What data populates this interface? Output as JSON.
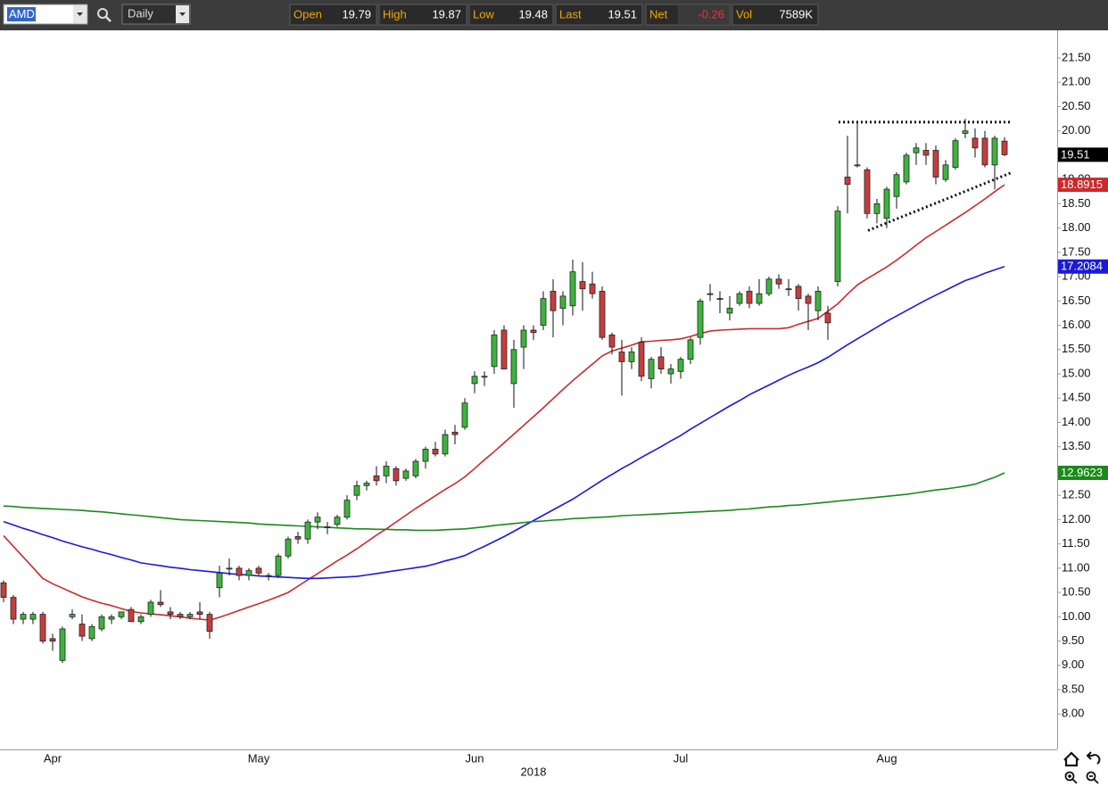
{
  "toolbar": {
    "symbol": "AMD",
    "interval": "Daily",
    "labels": [
      "Open",
      "High",
      "Low",
      "Last",
      "Net",
      "Vol"
    ],
    "net": -0.26,
    "vol": "7589K"
  },
  "chart_data": {
    "type": "candlestick",
    "xlabel": "2018",
    "categories": [
      null,
      null,
      null,
      null,
      null,
      "Apr",
      null,
      null,
      null,
      null,
      null,
      null,
      null,
      null,
      null,
      null,
      null,
      null,
      null,
      null,
      null,
      null,
      null,
      null,
      null,
      null,
      "May",
      null,
      null,
      null,
      null,
      null,
      null,
      null,
      null,
      null,
      null,
      null,
      null,
      null,
      null,
      null,
      null,
      null,
      null,
      null,
      null,
      null,
      "Jun",
      null,
      null,
      null,
      null,
      null,
      null,
      null,
      null,
      null,
      null,
      null,
      null,
      null,
      null,
      null,
      null,
      null,
      null,
      null,
      null,
      "Jul",
      null,
      null,
      null,
      null,
      null,
      null,
      null,
      null,
      null,
      null,
      null,
      null,
      null,
      null,
      null,
      null,
      null,
      null,
      null,
      null,
      "Aug",
      null,
      null,
      null,
      null,
      null,
      null,
      null,
      null,
      null,
      null,
      null,
      null
    ],
    "open": [
      10.7,
      10.4,
      9.95,
      9.95,
      10.05,
      9.55,
      9.1,
      10.0,
      9.85,
      9.55,
      9.75,
      9.95,
      10.0,
      10.15,
      9.9,
      10.05,
      10.3,
      10.1,
      10.05,
      10.0,
      10.1,
      10.05,
      10.6,
      11.0,
      11.0,
      10.85,
      11.0,
      10.85,
      10.85,
      11.25,
      11.65,
      11.6,
      11.95,
      11.85,
      11.9,
      12.05,
      12.5,
      12.7,
      12.9,
      12.9,
      13.05,
      12.85,
      12.9,
      13.2,
      13.45,
      13.35,
      13.8,
      13.9,
      14.8,
      14.95,
      15.15,
      15.9,
      14.8,
      15.55,
      15.9,
      16.0,
      16.7,
      16.35,
      16.4,
      16.9,
      16.85,
      16.7,
      15.8,
      15.45,
      15.25,
      15.65,
      14.9,
      15.35,
      15.0,
      15.05,
      15.3,
      15.75,
      16.65,
      16.55,
      16.25,
      16.45,
      16.7,
      16.45,
      16.65,
      16.95,
      16.75,
      16.8,
      16.6,
      16.3,
      16.25,
      16.9,
      19.05,
      19.3,
      19.2,
      18.3,
      18.2,
      18.65,
      18.95,
      19.55,
      19.6,
      19.6,
      19.0,
      19.25,
      19.95,
      19.85,
      19.85,
      19.3,
      19.79
    ],
    "high": [
      10.75,
      10.45,
      10.1,
      10.1,
      10.1,
      9.65,
      9.8,
      10.15,
      10.05,
      9.85,
      10.05,
      10.05,
      10.1,
      10.2,
      10.05,
      10.35,
      10.55,
      10.2,
      10.1,
      10.1,
      10.3,
      10.1,
      11.05,
      11.2,
      11.05,
      11.0,
      11.05,
      10.9,
      11.3,
      11.65,
      11.75,
      12.0,
      12.15,
      11.95,
      12.1,
      12.5,
      12.8,
      12.8,
      13.1,
      13.2,
      13.1,
      13.05,
      13.25,
      13.5,
      13.6,
      13.85,
      13.95,
      14.5,
      15.05,
      15.05,
      15.9,
      16.0,
      15.7,
      16.0,
      16.0,
      16.7,
      16.95,
      16.7,
      17.35,
      17.3,
      17.1,
      16.8,
      15.85,
      15.7,
      15.55,
      15.75,
      15.35,
      15.55,
      15.2,
      15.35,
      15.75,
      16.55,
      16.85,
      16.7,
      16.6,
      16.7,
      16.8,
      16.95,
      17.0,
      17.05,
      16.95,
      16.85,
      16.65,
      16.8,
      16.4,
      18.45,
      19.9,
      20.2,
      19.25,
      18.6,
      18.85,
      19.15,
      19.55,
      19.75,
      19.75,
      19.7,
      19.4,
      19.85,
      20.25,
      20.05,
      20.0,
      19.9,
      19.87
    ],
    "low": [
      10.3,
      9.85,
      9.85,
      9.85,
      9.45,
      9.3,
      9.05,
      9.95,
      9.5,
      9.5,
      9.7,
      9.85,
      9.95,
      9.9,
      9.85,
      10.0,
      10.2,
      9.95,
      9.95,
      9.95,
      9.95,
      9.55,
      10.4,
      10.85,
      10.75,
      10.75,
      10.85,
      10.75,
      10.8,
      11.2,
      11.5,
      11.5,
      11.8,
      11.7,
      11.85,
      12.0,
      12.4,
      12.6,
      12.7,
      12.75,
      12.7,
      12.8,
      12.85,
      13.05,
      13.3,
      13.3,
      13.55,
      13.85,
      14.6,
      14.75,
      15.0,
      15.1,
      14.3,
      15.1,
      15.7,
      15.9,
      15.75,
      16.0,
      16.2,
      16.3,
      16.55,
      15.7,
      15.4,
      14.55,
      15.1,
      14.85,
      14.7,
      15.0,
      14.8,
      14.9,
      15.2,
      15.6,
      16.5,
      16.25,
      16.1,
      16.4,
      16.35,
      16.4,
      16.6,
      16.75,
      16.6,
      16.3,
      15.9,
      16.1,
      15.7,
      16.8,
      18.3,
      19.25,
      18.2,
      18.1,
      18.0,
      18.4,
      18.9,
      19.3,
      19.3,
      18.9,
      18.95,
      19.2,
      19.85,
      19.45,
      19.25,
      18.8,
      19.48
    ],
    "close": [
      10.4,
      9.95,
      10.05,
      10.05,
      9.5,
      9.5,
      9.75,
      10.05,
      9.6,
      9.8,
      10.0,
      10.0,
      10.1,
      9.9,
      10.0,
      10.3,
      10.25,
      10.05,
      10.0,
      10.05,
      10.05,
      9.7,
      10.9,
      11.0,
      10.85,
      10.95,
      10.9,
      10.85,
      11.25,
      11.6,
      11.6,
      11.95,
      12.05,
      11.85,
      12.05,
      12.4,
      12.7,
      12.75,
      12.8,
      13.1,
      12.8,
      13.0,
      13.2,
      13.45,
      13.35,
      13.75,
      13.75,
      14.4,
      14.95,
      14.95,
      15.8,
      15.1,
      15.5,
      15.9,
      15.85,
      16.55,
      16.3,
      16.6,
      17.1,
      16.75,
      16.65,
      15.75,
      15.55,
      15.25,
      15.45,
      14.95,
      15.3,
      15.1,
      15.1,
      15.3,
      15.7,
      16.5,
      16.65,
      16.55,
      16.35,
      16.65,
      16.45,
      16.65,
      16.95,
      16.85,
      16.75,
      16.55,
      16.45,
      16.7,
      16.05,
      18.35,
      18.9,
      19.3,
      18.3,
      18.5,
      18.8,
      19.1,
      19.5,
      19.65,
      19.5,
      19.05,
      19.3,
      19.8,
      20.0,
      19.65,
      19.3,
      19.85,
      19.51
    ],
    "up_color": "#3cb43c",
    "down_color": "#c83c3c",
    "series": [
      {
        "color": "#cc2a2a",
        "values": [
          11.67,
          11.45,
          11.23,
          11.01,
          10.79,
          10.68,
          10.59,
          10.5,
          10.41,
          10.34,
          10.28,
          10.23,
          10.17,
          10.11,
          10.08,
          10.06,
          10.04,
          10.02,
          10.0,
          9.97,
          9.95,
          9.93,
          9.99,
          10.06,
          10.13,
          10.2,
          10.27,
          10.34,
          10.42,
          10.5,
          10.63,
          10.76,
          10.89,
          11.02,
          11.15,
          11.27,
          11.4,
          11.54,
          11.68,
          11.81,
          11.95,
          12.09,
          12.23,
          12.36,
          12.49,
          12.62,
          12.74,
          12.88,
          13.05,
          13.23,
          13.4,
          13.58,
          13.76,
          13.94,
          14.12,
          14.3,
          14.49,
          14.68,
          14.86,
          15.03,
          15.2,
          15.37,
          15.47,
          15.53,
          15.59,
          15.66,
          15.67,
          15.69,
          15.7,
          15.72,
          15.77,
          15.83,
          15.88,
          15.9,
          15.91,
          15.92,
          15.93,
          15.93,
          15.93,
          15.93,
          15.95,
          16.02,
          16.08,
          16.14,
          16.29,
          16.44,
          16.64,
          16.83,
          16.96,
          17.08,
          17.2,
          17.34,
          17.49,
          17.65,
          17.8,
          17.93,
          18.06,
          18.19,
          18.32,
          18.46,
          18.6,
          18.75,
          18.8915
        ]
      },
      {
        "color": "#1a1adb",
        "values": [
          11.96,
          11.89,
          11.82,
          11.76,
          11.69,
          11.63,
          11.56,
          11.5,
          11.44,
          11.39,
          11.33,
          11.28,
          11.22,
          11.17,
          11.11,
          11.08,
          11.05,
          11.02,
          11.0,
          10.97,
          10.95,
          10.93,
          10.91,
          10.89,
          10.87,
          10.86,
          10.84,
          10.83,
          10.82,
          10.81,
          10.8,
          10.79,
          10.79,
          10.8,
          10.81,
          10.82,
          10.83,
          10.86,
          10.89,
          10.92,
          10.95,
          10.98,
          11.01,
          11.04,
          11.09,
          11.15,
          11.2,
          11.26,
          11.36,
          11.45,
          11.55,
          11.65,
          11.76,
          11.87,
          11.98,
          12.09,
          12.2,
          12.31,
          12.42,
          12.55,
          12.68,
          12.81,
          12.93,
          13.05,
          13.16,
          13.28,
          13.39,
          13.5,
          13.62,
          13.73,
          13.86,
          13.98,
          14.1,
          14.22,
          14.34,
          14.45,
          14.57,
          14.67,
          14.77,
          14.87,
          14.97,
          15.06,
          15.14,
          15.23,
          15.34,
          15.47,
          15.6,
          15.72,
          15.84,
          15.96,
          16.08,
          16.19,
          16.3,
          16.41,
          16.52,
          16.62,
          16.72,
          16.82,
          16.92,
          16.99,
          17.07,
          17.14,
          17.2084
        ]
      },
      {
        "color": "#1a8a1a",
        "values": [
          12.28,
          12.27,
          12.25,
          12.24,
          12.23,
          12.22,
          12.21,
          12.2,
          12.19,
          12.17,
          12.16,
          12.14,
          12.12,
          12.1,
          12.08,
          12.06,
          12.04,
          12.02,
          12.0,
          11.99,
          11.98,
          11.97,
          11.96,
          11.95,
          11.94,
          11.93,
          11.91,
          11.9,
          11.89,
          11.88,
          11.87,
          11.86,
          11.85,
          11.84,
          11.83,
          11.82,
          11.81,
          11.81,
          11.8,
          11.8,
          11.79,
          11.79,
          11.78,
          11.78,
          11.78,
          11.79,
          11.8,
          11.81,
          11.83,
          11.85,
          11.88,
          11.9,
          11.92,
          11.94,
          11.96,
          11.97,
          11.99,
          12.0,
          12.02,
          12.03,
          12.04,
          12.05,
          12.06,
          12.08,
          12.09,
          12.1,
          12.11,
          12.12,
          12.13,
          12.14,
          12.15,
          12.16,
          12.17,
          12.18,
          12.19,
          12.21,
          12.22,
          12.24,
          12.26,
          12.27,
          12.29,
          12.3,
          12.32,
          12.34,
          12.36,
          12.38,
          12.4,
          12.42,
          12.44,
          12.46,
          12.48,
          12.5,
          12.52,
          12.55,
          12.58,
          12.61,
          12.63,
          12.66,
          12.69,
          12.73,
          12.8,
          12.87,
          12.9623
        ]
      }
    ],
    "trendlines": [
      [
        20.18,
        20.18
      ],
      [
        17.95,
        19.15
      ]
    ],
    "ylim": [
      7.27,
      22.07
    ],
    "yticks": [
      {
        "value": 8,
        "label": "8.00"
      },
      {
        "value": 8.5,
        "label": "8.50"
      },
      {
        "value": 9,
        "label": "9.00"
      },
      {
        "value": 9.5,
        "label": "9.50"
      },
      {
        "value": 10,
        "label": "10.00"
      },
      {
        "value": 10.5,
        "label": "10.50"
      },
      {
        "value": 11,
        "label": "11.00"
      },
      {
        "value": 11.5,
        "label": "11.50"
      },
      {
        "value": 12,
        "label": "12.00"
      },
      {
        "value": 12.5,
        "label": "12.50"
      },
      {
        "value": 13,
        "label": "13.00"
      },
      {
        "value": 13.5,
        "label": "13.50"
      },
      {
        "value": 14,
        "label": "14.00"
      },
      {
        "value": 14.5,
        "label": "14.50"
      },
      {
        "value": 15,
        "label": "15.00"
      },
      {
        "value": 15.5,
        "label": "15.50"
      },
      {
        "value": 16,
        "label": "16.00"
      },
      {
        "value": 16.5,
        "label": "16.50"
      },
      {
        "value": 17,
        "label": "17.00"
      },
      {
        "value": 17.5,
        "label": "17.50"
      },
      {
        "value": 18,
        "label": "18.00"
      },
      {
        "value": 18.5,
        "label": "18.50"
      },
      {
        "value": 19,
        "label": "19.00"
      },
      {
        "value": 19.5,
        "label": "19.50"
      },
      {
        "value": 20,
        "label": "20.00"
      },
      {
        "value": 20.5,
        "label": "20.50"
      },
      {
        "value": 21,
        "label": "21.00"
      },
      {
        "value": 21.5,
        "label": "21.50"
      }
    ],
    "grid": false
  }
}
